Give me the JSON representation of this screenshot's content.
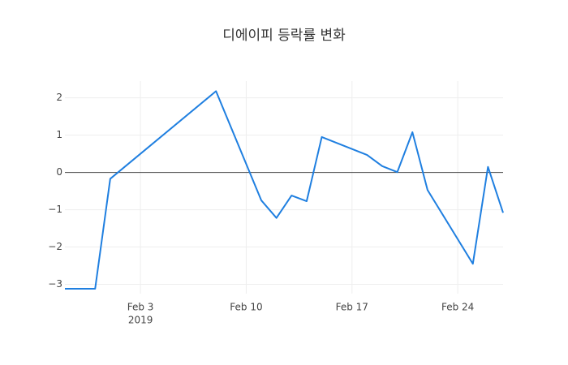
{
  "chart_data": {
    "type": "line",
    "title": "디에이피 등락률 변화",
    "x": [
      "2019-01-29",
      "2019-01-31",
      "2019-02-01",
      "2019-02-08",
      "2019-02-11",
      "2019-02-12",
      "2019-02-13",
      "2019-02-14",
      "2019-02-15",
      "2019-02-18",
      "2019-02-19",
      "2019-02-20",
      "2019-02-21",
      "2019-02-22",
      "2019-02-25",
      "2019-02-26",
      "2019-02-27"
    ],
    "series": [
      {
        "color": "#1f7fe0",
        "values": [
          -3.12,
          -3.12,
          -0.17,
          2.18,
          -0.75,
          -1.22,
          -0.62,
          -0.77,
          0.95,
          0.47,
          0.17,
          0.01,
          1.08,
          -0.47,
          -2.45,
          0.15,
          -1.08
        ]
      }
    ],
    "xlim": [
      "2019-01-29",
      "2019-02-27"
    ],
    "xticks": [
      {
        "value": "2019-02-03",
        "label": "Feb 3"
      },
      {
        "value": "2019-02-10",
        "label": "Feb 10"
      },
      {
        "value": "2019-02-17",
        "label": "Feb 17"
      },
      {
        "value": "2019-02-24",
        "label": "Feb 24"
      }
    ],
    "x_year_label": "2019",
    "ylim": [
      -3.25,
      2.45
    ],
    "yticks": [
      {
        "value": -3,
        "label": "−3"
      },
      {
        "value": -2,
        "label": "−2"
      },
      {
        "value": -1,
        "label": "−1"
      },
      0,
      1,
      2
    ],
    "grid": true,
    "zero_line": true
  }
}
